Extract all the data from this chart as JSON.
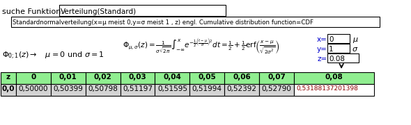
{
  "title_label": "suche Funktion:",
  "input_box1_text": "Verteilung(Standard)",
  "subtitle": "Standardnormalverteilung(x=μ meist 0,y=σ meist 1 , z) engl. Cumulative distribution function=CDF",
  "formula_left": "Φ_{μ,σ}(z)=",
  "x_label": "x=",
  "x_val": "0",
  "x_unit": "μ",
  "y_label": "y=",
  "y_val": "1",
  "y_unit": "σ",
  "z_label": "z=",
  "z_val": "0.08",
  "phi_text": "Φ₀₁(z) →   μ = 0 und σ = 1",
  "table_headers": [
    "z",
    "0",
    "0,01",
    "0,02",
    "0,03",
    "0,04",
    "0,05",
    "0,06",
    "0,07",
    "0,08"
  ],
  "table_row_label": "0,0",
  "table_values": [
    "0,50000",
    "0,50399",
    "0,50798",
    "0,51197",
    "0,51595",
    "0,51994",
    "0,52392",
    "0,52790",
    "0,53188137201398"
  ],
  "table_header_bg": "#90EE90",
  "table_row_bg": "#d3d3d3",
  "last_cell_bg": "#ffffff",
  "border_color": "#000000",
  "text_color": "#000000",
  "blue_text": "#0000cd",
  "bg_color": "#ffffff"
}
